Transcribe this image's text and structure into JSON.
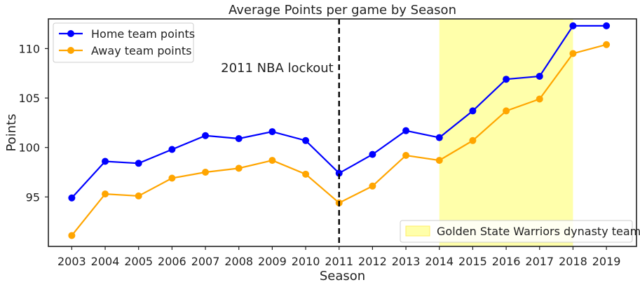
{
  "chart_data": {
    "type": "line",
    "title": "Average Points per game by Season",
    "xlabel": "Season",
    "ylabel": "Points",
    "x": [
      2003,
      2004,
      2005,
      2006,
      2007,
      2008,
      2009,
      2010,
      2011,
      2012,
      2013,
      2014,
      2015,
      2016,
      2017,
      2018,
      2019
    ],
    "x_tick_labels": [
      "2003",
      "2004",
      "2005",
      "2006",
      "2007",
      "2008",
      "2009",
      "2010",
      "2011",
      "2012",
      "2013",
      "2014",
      "2015",
      "2016",
      "2017",
      "2018",
      "2019"
    ],
    "xlim": [
      2002.3,
      2019.9
    ],
    "ylim": [
      90,
      113
    ],
    "y_ticks": [
      95,
      100,
      105,
      110
    ],
    "y_tick_labels": [
      "95",
      "100",
      "105",
      "110"
    ],
    "series": [
      {
        "name": "Home team points",
        "color": "#0000ff",
        "values": [
          94.9,
          98.6,
          98.4,
          99.8,
          101.2,
          100.9,
          101.6,
          100.7,
          97.4,
          99.3,
          101.7,
          101.0,
          103.7,
          106.9,
          107.2,
          112.3,
          112.3
        ]
      },
      {
        "name": "Away team points",
        "color": "#ffa500",
        "values": [
          91.1,
          95.3,
          95.1,
          96.9,
          97.5,
          97.9,
          98.7,
          97.3,
          94.4,
          96.1,
          99.2,
          98.7,
          100.7,
          103.7,
          104.9,
          109.5,
          110.4
        ]
      }
    ],
    "vline": {
      "x": 2011,
      "label": "2011 NBA lockout",
      "color": "#000000",
      "style": "dashed"
    },
    "shaded_region": {
      "x_start": 2014,
      "x_end": 2018,
      "label": "Golden State Warriors dynasty team",
      "color": "#ffffaa"
    },
    "legend": {
      "series_placement": "upper-left",
      "region_placement": "lower-right"
    },
    "grid": false
  }
}
